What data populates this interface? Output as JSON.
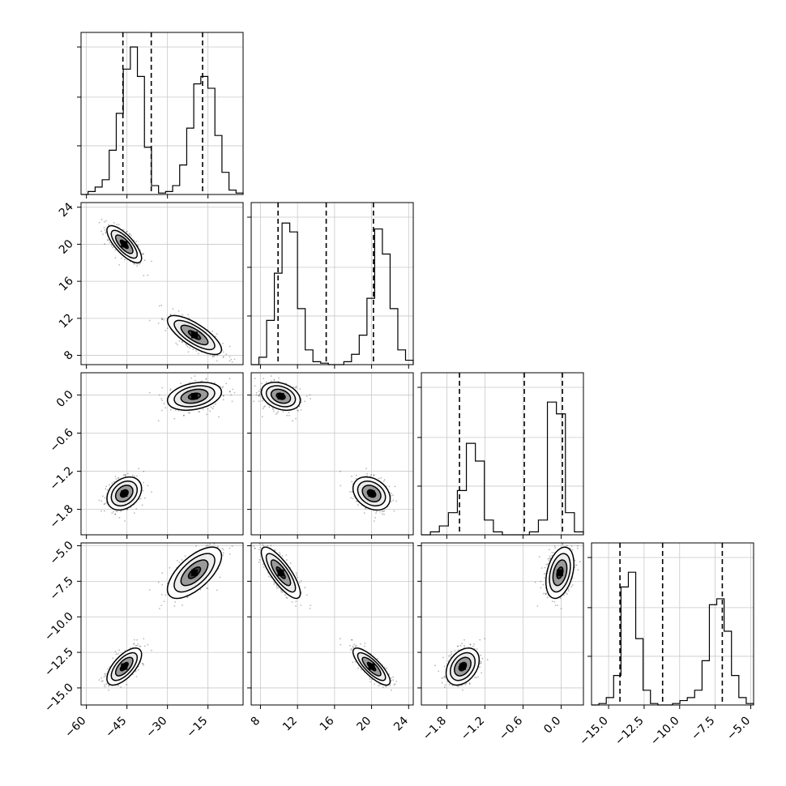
{
  "chart_data": {
    "type": "scatter",
    "title": "",
    "params": [
      {
        "range": [
          -62,
          -2
        ],
        "ticks": [
          -60,
          -45,
          -30,
          -15
        ],
        "tick_labels": [
          "−60",
          "−45",
          "−30",
          "−15"
        ],
        "quantiles": [
          -46.5,
          -36.0,
          -17.0
        ]
      },
      {
        "range": [
          7,
          24.5
        ],
        "ticks": [
          8,
          12,
          16,
          20,
          24
        ],
        "tick_labels": [
          "8",
          "12",
          "16",
          "20",
          "24"
        ],
        "quantiles": [
          9.9,
          15.1,
          20.2
        ]
      },
      {
        "range": [
          -2.2,
          0.35
        ],
        "ticks": [
          -1.8,
          -1.2,
          -0.6,
          0.0
        ],
        "tick_labels": [
          "−1.8",
          "−1.2",
          "−0.6",
          "0.0"
        ],
        "quantiles": [
          -1.6,
          -0.58,
          0.02
        ]
      },
      {
        "range": [
          -16.2,
          -4.8
        ],
        "ticks": [
          -15.0,
          -12.5,
          -10.0,
          -7.5,
          -5.0
        ],
        "tick_labels": [
          "−15.0",
          "−12.5",
          "−10.0",
          "−7.5",
          "−5.0"
        ],
        "quantiles": [
          -14.2,
          -11.2,
          -7.0
        ]
      }
    ],
    "histograms": [
      [
        0,
        0.02,
        0.05,
        0.1,
        0.3,
        0.55,
        0.85,
        1.0,
        0.8,
        0.32,
        0.06,
        0.01,
        0.02,
        0.06,
        0.2,
        0.45,
        0.75,
        0.8,
        0.72,
        0.4,
        0.15,
        0.03,
        0.01
      ],
      [
        0,
        0.05,
        0.3,
        0.62,
        0.96,
        0.9,
        0.38,
        0.1,
        0.02,
        0.01,
        0,
        0,
        0.02,
        0.07,
        0.2,
        0.45,
        0.92,
        0.75,
        0.38,
        0.1,
        0.03
      ],
      [
        0,
        0.02,
        0.06,
        0.15,
        0.3,
        0.62,
        0.5,
        0.1,
        0.02,
        0,
        0,
        0,
        0.02,
        0.1,
        0.9,
        0.82,
        0.15,
        0.02
      ],
      [
        0,
        0.01,
        0.05,
        0.2,
        0.8,
        0.9,
        0.45,
        0.1,
        0.01,
        0,
        0,
        0.01,
        0.03,
        0.05,
        0.1,
        0.3,
        0.68,
        0.72,
        0.5,
        0.2,
        0.05,
        0.01
      ]
    ],
    "modes": [
      {
        "weight": 0.5,
        "mean": [
          -46,
          20,
          -1.55,
          -13.5
        ],
        "sd": [
          3.2,
          1.0,
          0.13,
          0.65
        ]
      },
      {
        "weight": 0.5,
        "mean": [
          -20,
          10.2,
          -0.02,
          -6.9
        ],
        "sd": [
          5.0,
          1.05,
          0.11,
          0.9
        ]
      }
    ],
    "correlations": [
      [
        1,
        -0.75,
        0.3,
        0.65
      ],
      [
        -0.75,
        1,
        -0.3,
        -0.8
      ],
      [
        0.3,
        -0.3,
        1,
        0.35
      ],
      [
        0.65,
        -0.8,
        0.35,
        1
      ]
    ],
    "grid": true
  }
}
